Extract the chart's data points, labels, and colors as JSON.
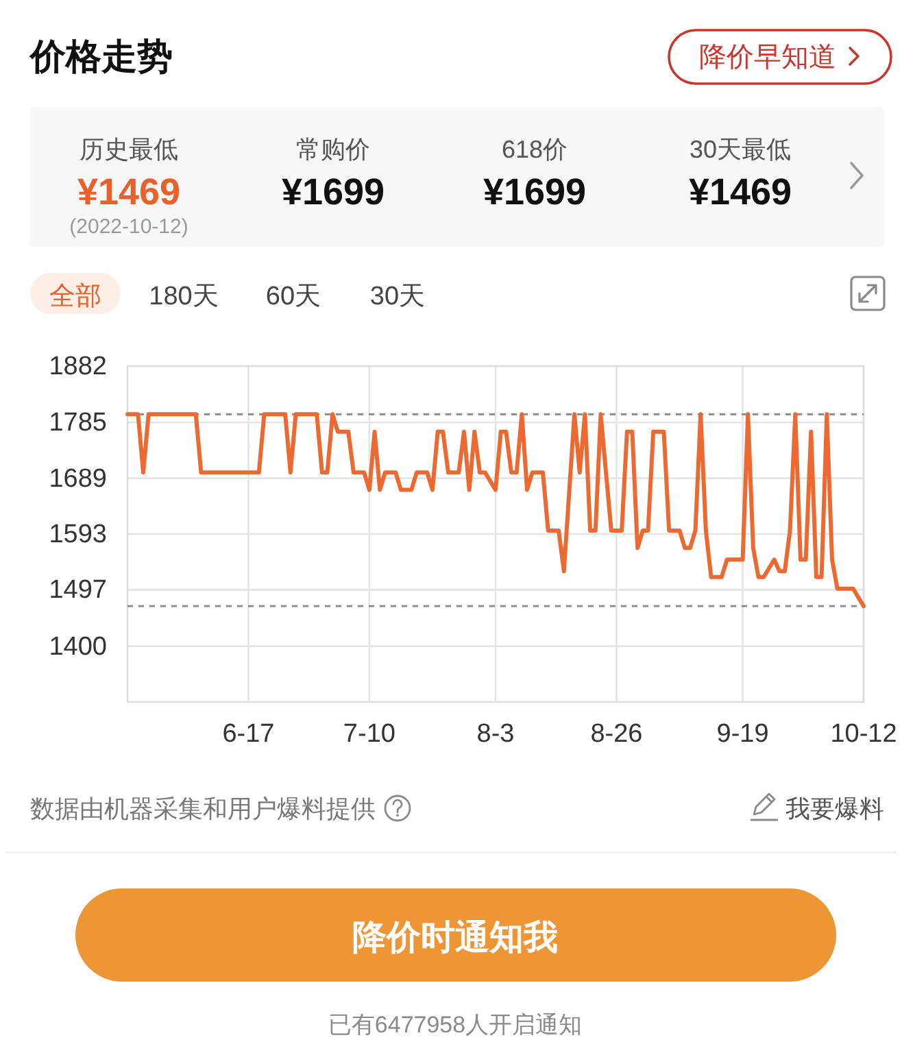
{
  "chart_data": {
    "type": "line",
    "title": "价格走势",
    "annotations": [
      "降价早知道",
      "历史最低",
      "¥1469",
      "(2022-10-12)",
      "常购价",
      "¥1699",
      "618价",
      "¥1699",
      "30天最低",
      "¥1469",
      "全部",
      "180天",
      "60天",
      "30天",
      "数据由机器采集和用户爆料提供",
      "我要爆料",
      "降价时通知我",
      "已有6477958人开启通知"
    ],
    "x": [
      "--05-25",
      "--05-27",
      "--05-28",
      "--05-29",
      "--06-07",
      "--06-08",
      "--06-19",
      "--06-20",
      "--06-24",
      "--06-25",
      "--06-26",
      "--06-30",
      "--07-01",
      "--07-02",
      "--07-03",
      "--07-04",
      "--07-06",
      "--07-07",
      "--07-09",
      "--07-10",
      "--07-11",
      "--07-12",
      "--07-13",
      "--07-15",
      "--07-16",
      "--07-18",
      "--07-19",
      "--07-21",
      "--07-22",
      "--07-23",
      "--07-24",
      "--07-25",
      "--07-27",
      "--07-28",
      "--07-29",
      "--07-30",
      "--07-31",
      "--08-01",
      "--08-03",
      "--08-04",
      "--08-05",
      "--08-06",
      "--08-07",
      "--08-08",
      "--08-09",
      "--08-10",
      "--08-12",
      "--08-13",
      "--08-15",
      "--08-16",
      "--08-18",
      "--08-19",
      "--08-20",
      "--08-21",
      "--08-22",
      "--08-23",
      "--08-25",
      "--08-27",
      "--08-28",
      "--08-29",
      "--08-30",
      "--08-31",
      "--09-01",
      "--09-02",
      "--09-04",
      "--09-05",
      "--09-07",
      "--09-08",
      "--09-09",
      "--09-10",
      "--09-11",
      "--09-12",
      "--09-13",
      "--09-15",
      "--09-16",
      "--09-19",
      "--09-20",
      "--09-21",
      "--09-22",
      "--09-23",
      "--09-25",
      "--09-26",
      "--09-27",
      "--09-28",
      "--09-29",
      "--09-30",
      "--10-01",
      "--10-02",
      "--10-03",
      "--10-04",
      "--10-05",
      "--10-06",
      "--10-07",
      "--10-10",
      "--10-12"
    ],
    "values": [
      1799,
      1799,
      1699,
      1799,
      1799,
      1699,
      1699,
      1799,
      1799,
      1699,
      1799,
      1799,
      1699,
      1699,
      1799,
      1769,
      1769,
      1699,
      1699,
      1669,
      1769,
      1669,
      1699,
      1699,
      1669,
      1669,
      1699,
      1699,
      1669,
      1769,
      1769,
      1699,
      1699,
      1769,
      1669,
      1769,
      1699,
      1699,
      1669,
      1769,
      1769,
      1699,
      1699,
      1799,
      1669,
      1699,
      1699,
      1599,
      1599,
      1529,
      1799,
      1699,
      1799,
      1599,
      1599,
      1799,
      1599,
      1599,
      1769,
      1769,
      1569,
      1599,
      1599,
      1769,
      1769,
      1599,
      1599,
      1569,
      1569,
      1599,
      1799,
      1599,
      1519,
      1519,
      1549,
      1549,
      1799,
      1569,
      1519,
      1519,
      1549,
      1529,
      1529,
      1599,
      1799,
      1549,
      1549,
      1769,
      1519,
      1519,
      1799,
      1549,
      1499,
      1499,
      1469
    ],
    "color": "#ec6a31",
    "xlim": [
      "--05-25",
      "--10-12"
    ],
    "ylim": [
      1304,
      1882
    ],
    "xticks": [
      {
        "value": "--06-17",
        "label": "6-17"
      },
      {
        "value": "--07-10",
        "label": "7-10"
      },
      {
        "value": "--08-03",
        "label": "8-3"
      },
      {
        "value": "--08-26",
        "label": "8-26"
      },
      {
        "value": "--09-19",
        "label": "9-19"
      },
      {
        "value": "--10-12",
        "label": "10-12"
      }
    ],
    "yticks": [
      1400,
      1497,
      1593,
      1689,
      1785,
      1882
    ],
    "grid": true,
    "ref_lines": [
      {
        "axis": "y",
        "value": 1799,
        "line_style": "dashed",
        "color": "#888888"
      },
      {
        "axis": "y",
        "value": 1469,
        "line_style": "dashed",
        "color": "#888888"
      }
    ]
  }
}
